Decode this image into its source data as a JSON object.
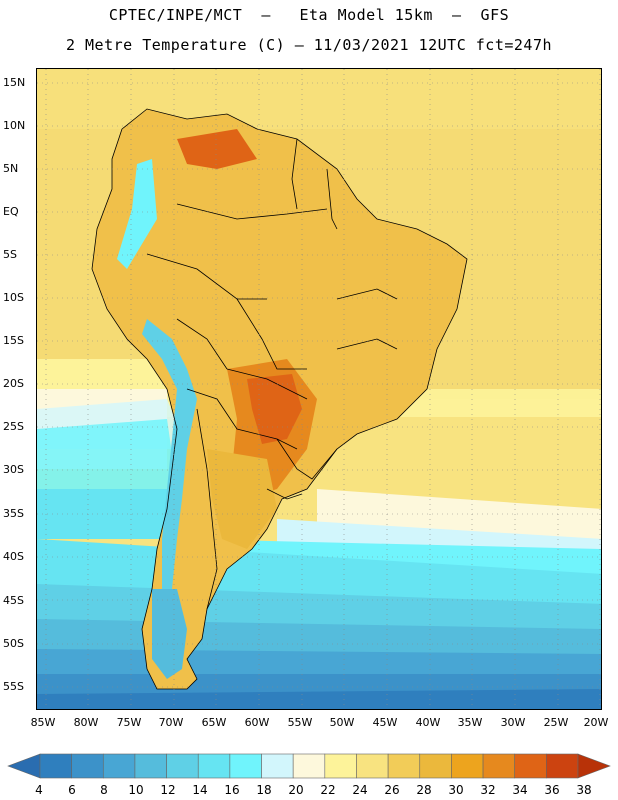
{
  "header": {
    "line1": "CPTEC/INPE/MCT  –   Eta Model 15km  –  GFS",
    "line2": "2 Metre Temperature (C) – 11/03/2021 12UTC fct=247h"
  },
  "map": {
    "lat_labels": [
      "15N",
      "10N",
      "5N",
      "EQ",
      "5S",
      "10S",
      "15S",
      "20S",
      "25S",
      "30S",
      "35S",
      "40S",
      "45S",
      "50S",
      "55S"
    ],
    "lon_labels": [
      "85W",
      "80W",
      "75W",
      "70W",
      "65W",
      "60W",
      "55W",
      "50W",
      "45W",
      "40W",
      "35W",
      "30W",
      "25W",
      "20W"
    ],
    "lat_range": [
      -57,
      16.5
    ],
    "lon_range": [
      -86,
      -20
    ]
  },
  "legend": {
    "levels": [
      "4",
      "6",
      "8",
      "10",
      "12",
      "14",
      "16",
      "18",
      "20",
      "22",
      "24",
      "26",
      "28",
      "30",
      "32",
      "34",
      "36",
      "38"
    ],
    "colors": [
      "#2a6db0",
      "#2f7fbe",
      "#3c92c9",
      "#48a6d4",
      "#55bcdc",
      "#5fd0e6",
      "#66e4f2",
      "#70f4fc",
      "#d2f6fc",
      "#fdf8dc",
      "#fdf39a",
      "#f8e380",
      "#f2cc58",
      "#ebb83c",
      "#eda41e",
      "#e6891e",
      "#df6416",
      "#cc4310",
      "#b83208"
    ]
  }
}
